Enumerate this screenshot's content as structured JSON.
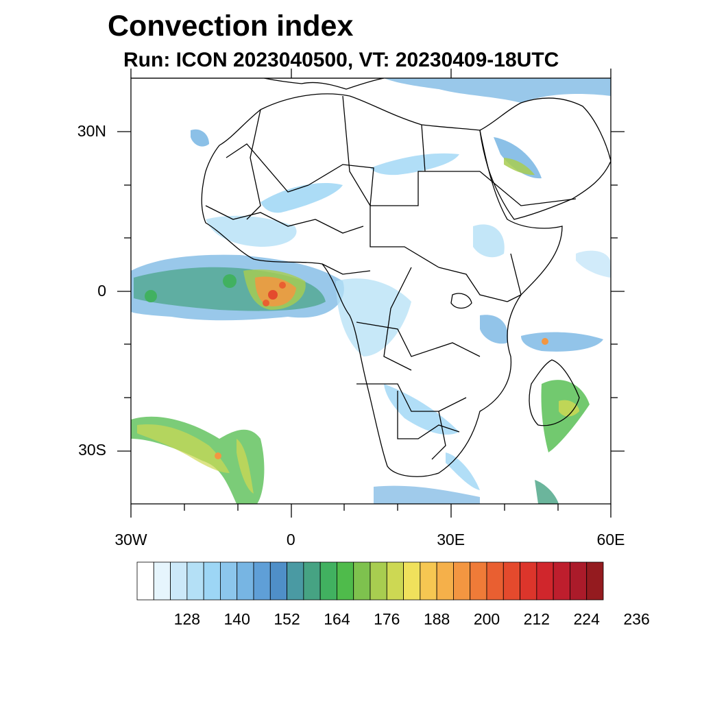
{
  "title": "Convection index",
  "subtitle": "Run: ICON 2023040500,  VT: 20230409-18UTC",
  "map": {
    "lat_labels": [
      {
        "text": "30N",
        "lat": 30
      },
      {
        "text": "0",
        "lat": 0
      },
      {
        "text": "30S",
        "lat": -30
      }
    ],
    "lon_labels": [
      {
        "text": "30W",
        "lon": -30
      },
      {
        "text": "0",
        "lon": 0
      },
      {
        "text": "30E",
        "lon": 30
      },
      {
        "text": "60E",
        "lon": 60
      }
    ],
    "extent": {
      "lon_min": -30,
      "lon_max": 60,
      "lat_min": -40,
      "lat_max": 40
    }
  },
  "colorbar": {
    "labels": [
      "128",
      "140",
      "152",
      "164",
      "176",
      "188",
      "200",
      "212",
      "224",
      "236"
    ],
    "colors": [
      "#ffffff",
      "#e6f5fd",
      "#cce9f9",
      "#b4e0f6",
      "#9dd6f5",
      "#8cc6ec",
      "#77b5e3",
      "#5f9fd7",
      "#4f8fc8",
      "#4a9aa3",
      "#46a383",
      "#41b160",
      "#4fbb4b",
      "#7ec24e",
      "#a8cd50",
      "#cdd853",
      "#f0e15c",
      "#f6c752",
      "#f5b04a",
      "#f39641",
      "#ef7b38",
      "#e95f31",
      "#e44a2d",
      "#dc352b",
      "#d0262c",
      "#be1e2d",
      "#ab1b2a",
      "#941b1f"
    ]
  }
}
